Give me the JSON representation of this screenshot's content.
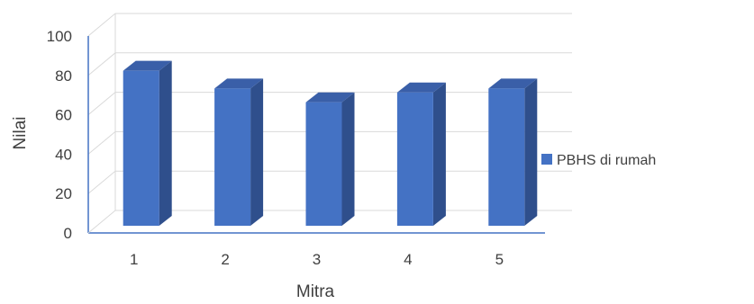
{
  "chart_data": {
    "type": "bar",
    "categories": [
      "1",
      "2",
      "3",
      "4",
      "5"
    ],
    "series": [
      {
        "name": "PBHS di rumah",
        "values": [
          86,
          77,
          70,
          75,
          77
        ],
        "color": "#4472C4"
      }
    ],
    "xlabel": "Mitra",
    "ylabel": "Nilai",
    "ylim": [
      0,
      100
    ],
    "yticks": [
      0,
      20,
      40,
      60,
      80,
      100
    ],
    "grid": true,
    "legend_position": "right"
  }
}
